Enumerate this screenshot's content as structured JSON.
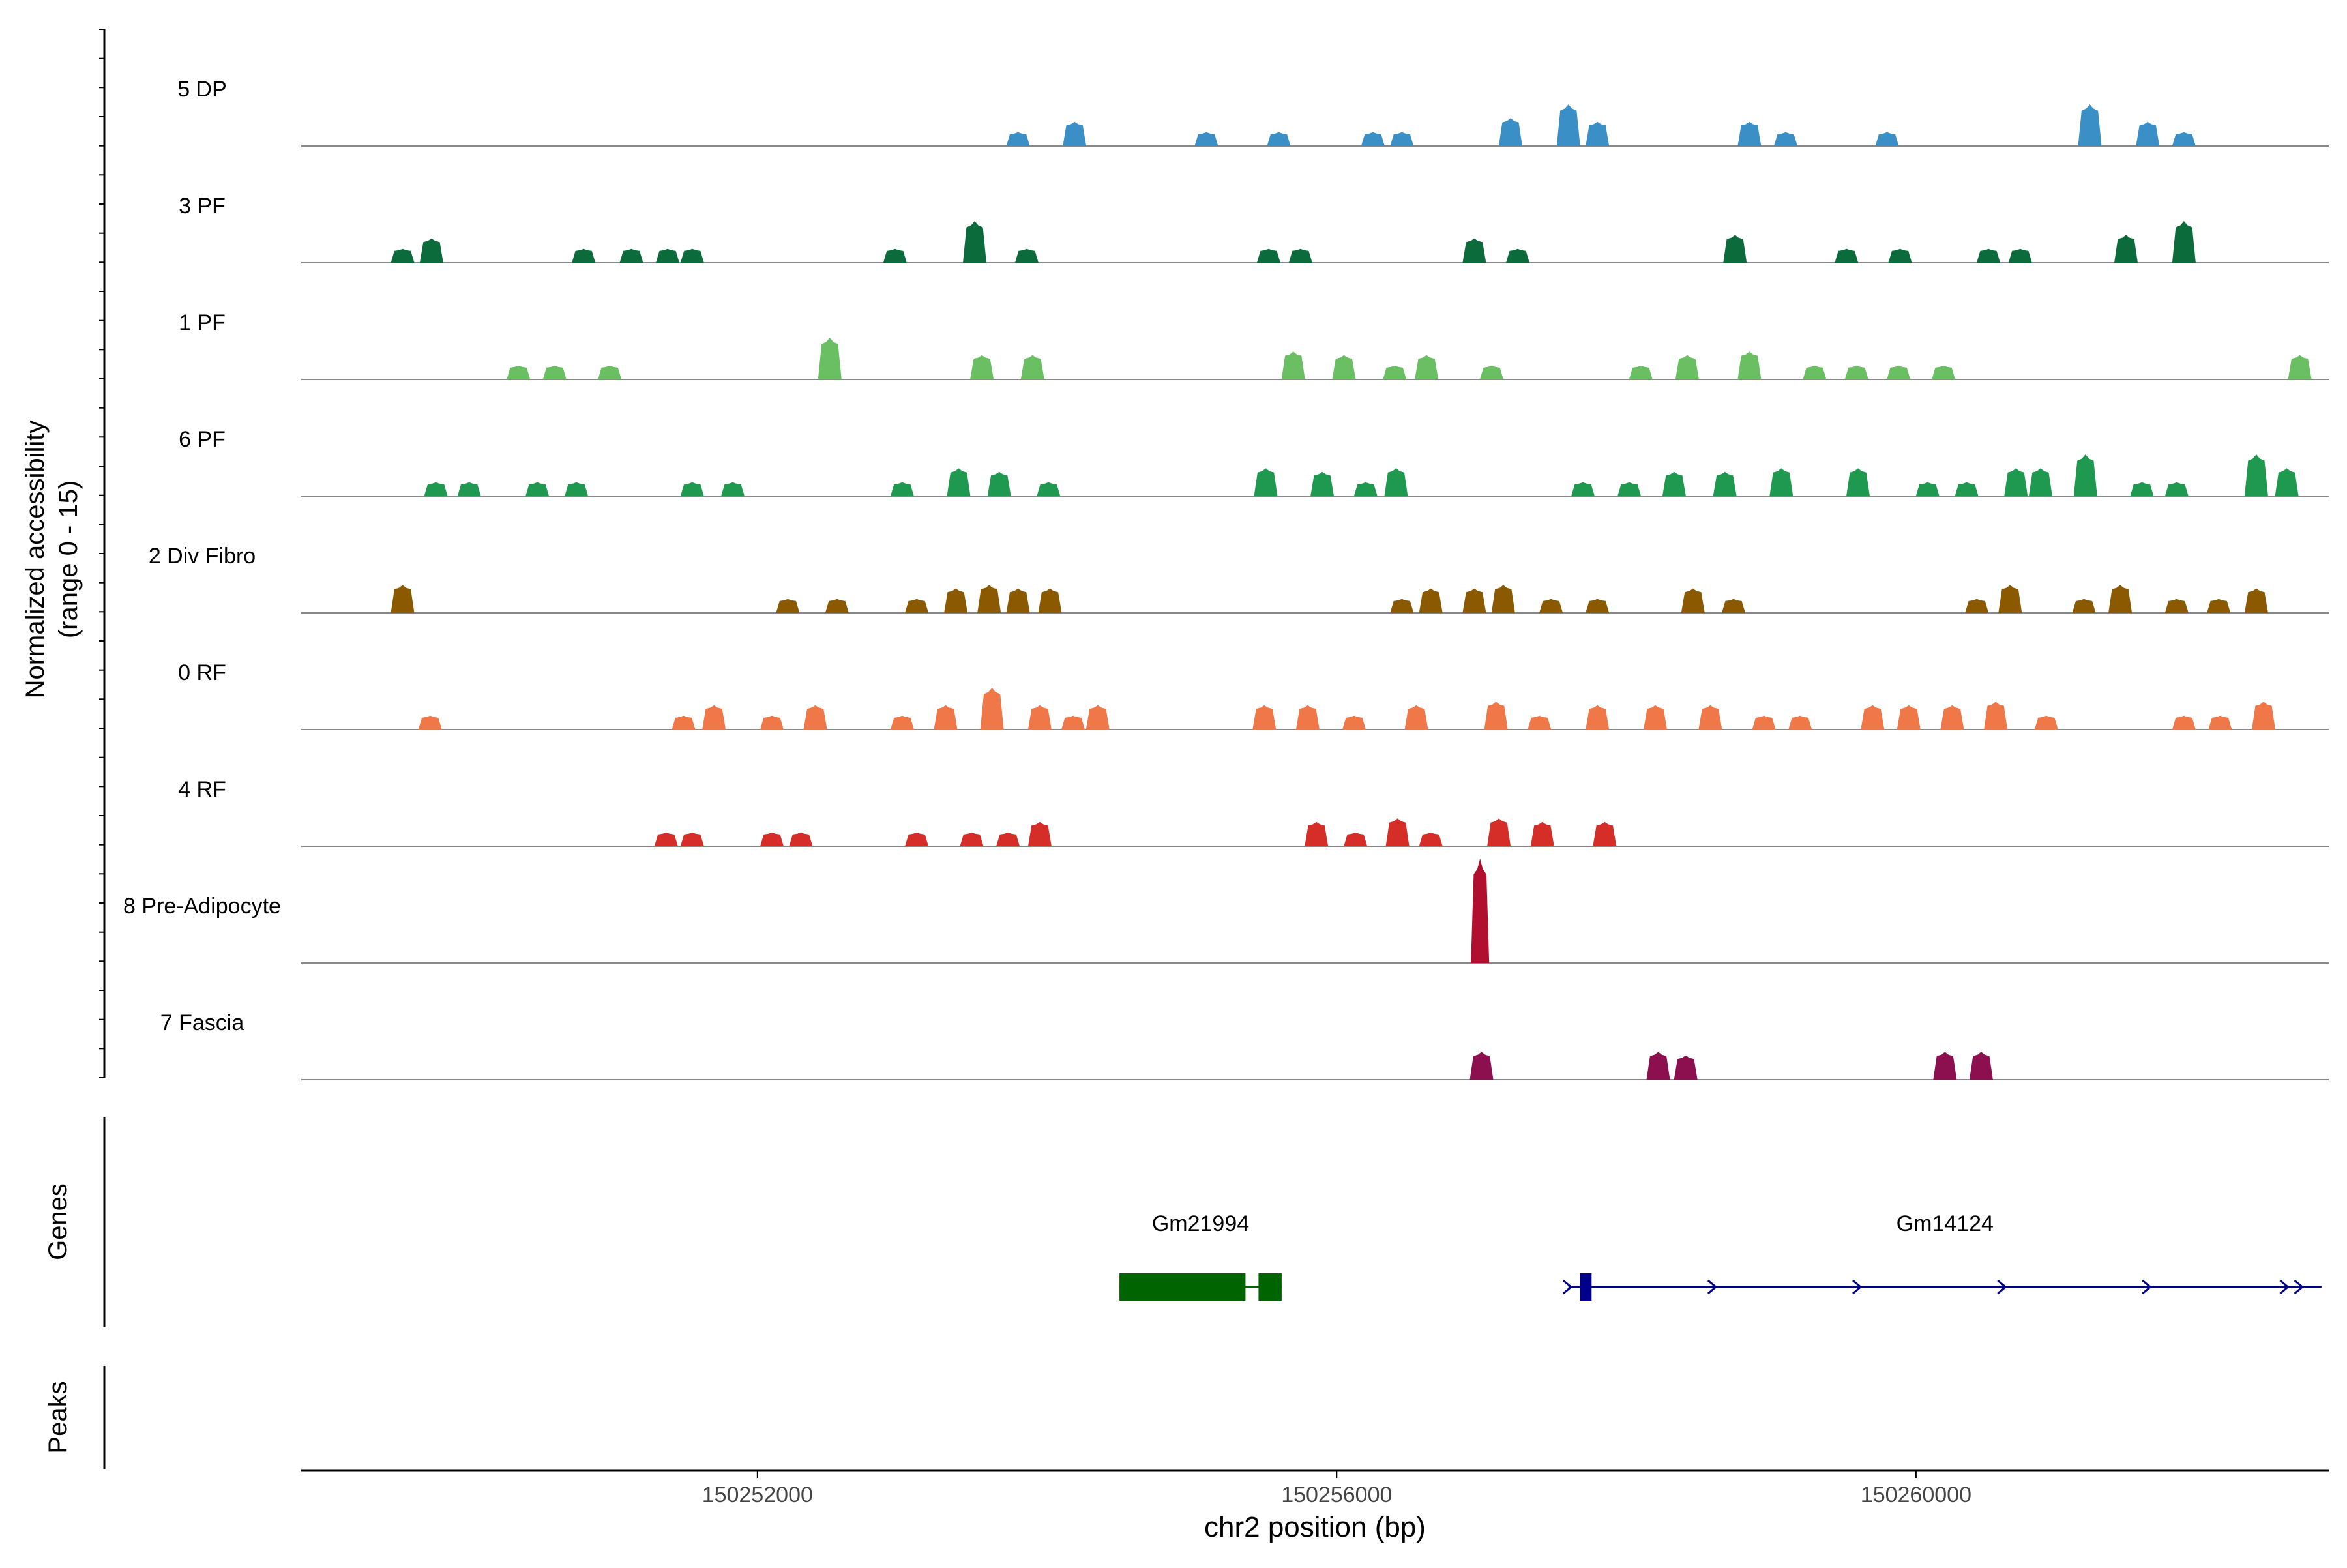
{
  "chart_data": {
    "type": "area",
    "ylabel": "Normalized accessibility",
    "ylabel_range": "(range 0 - 15)",
    "xlabel": "chr2 position (bp)",
    "xlim": [
      150248850,
      150262850
    ],
    "ylim": [
      0,
      15
    ],
    "x_ticks": [
      150252000,
      150256000,
      150260000
    ],
    "x_tick_labels": [
      "150252000",
      "150256000",
      "150260000"
    ],
    "grid": false,
    "legend": "none",
    "tracks": [
      {
        "name": "5 DP",
        "color": "#3a8fc7",
        "peaks": [
          [
            150253800,
            2
          ],
          [
            150254190,
            3.5
          ],
          [
            150255100,
            2
          ],
          [
            150255600,
            2
          ],
          [
            150256250,
            2
          ],
          [
            150256450,
            2
          ],
          [
            150257200,
            4
          ],
          [
            150257600,
            6
          ],
          [
            150257800,
            3.5
          ],
          [
            150258850,
            3.5
          ],
          [
            150259100,
            2
          ],
          [
            150259800,
            2
          ],
          [
            150261200,
            6
          ],
          [
            150261600,
            3.5
          ],
          [
            150261850,
            2
          ]
        ]
      },
      {
        "name": "3 PF",
        "color": "#0b6b3a",
        "peaks": [
          [
            150249550,
            2
          ],
          [
            150249750,
            3.5
          ],
          [
            150250800,
            2
          ],
          [
            150251130,
            2
          ],
          [
            150251380,
            2
          ],
          [
            150251550,
            2
          ],
          [
            150252950,
            2
          ],
          [
            150253500,
            6
          ],
          [
            150253860,
            2
          ],
          [
            150255530,
            2
          ],
          [
            150255750,
            2
          ],
          [
            150256950,
            3.5
          ],
          [
            150257250,
            2
          ],
          [
            150258750,
            4
          ],
          [
            150259520,
            2
          ],
          [
            150259890,
            2
          ],
          [
            150260500,
            2
          ],
          [
            150260720,
            2
          ],
          [
            150261450,
            4
          ],
          [
            150261850,
            6
          ]
        ]
      },
      {
        "name": "1 PF",
        "color": "#6abf62",
        "peaks": [
          [
            150250350,
            2
          ],
          [
            150250600,
            2
          ],
          [
            150250980,
            2
          ],
          [
            150252500,
            6
          ],
          [
            150253550,
            3.5
          ],
          [
            150253900,
            3.5
          ],
          [
            150255700,
            4
          ],
          [
            150256050,
            3.5
          ],
          [
            150256400,
            2
          ],
          [
            150256620,
            3.5
          ],
          [
            150257070,
            2
          ],
          [
            150258100,
            2
          ],
          [
            150258420,
            3.5
          ],
          [
            150258850,
            4
          ],
          [
            150259300,
            2
          ],
          [
            150259590,
            2
          ],
          [
            150259880,
            2
          ],
          [
            150260190,
            2
          ],
          [
            150262650,
            3.5
          ]
        ]
      },
      {
        "name": "6 PF",
        "color": "#1f9850",
        "peaks": [
          [
            150249780,
            2
          ],
          [
            150250010,
            2
          ],
          [
            150250480,
            2
          ],
          [
            150250750,
            2
          ],
          [
            150251550,
            2
          ],
          [
            150251830,
            2
          ],
          [
            150253000,
            2
          ],
          [
            150253390,
            4
          ],
          [
            150253670,
            3.5
          ],
          [
            150254010,
            2
          ],
          [
            150255510,
            4
          ],
          [
            150255900,
            3.5
          ],
          [
            150256200,
            2
          ],
          [
            150256410,
            4
          ],
          [
            150257700,
            2
          ],
          [
            150258020,
            2
          ],
          [
            150258330,
            3.5
          ],
          [
            150258680,
            3.5
          ],
          [
            150259070,
            4
          ],
          [
            150259600,
            4
          ],
          [
            150260080,
            2
          ],
          [
            150260350,
            2
          ],
          [
            150260690,
            4
          ],
          [
            150260860,
            4
          ],
          [
            150261170,
            6
          ],
          [
            150261560,
            2
          ],
          [
            150261800,
            2
          ],
          [
            150262350,
            6
          ],
          [
            150262560,
            4
          ]
        ]
      },
      {
        "name": "2 Div Fibro",
        "color": "#8b5a00",
        "peaks": [
          [
            150249550,
            4
          ],
          [
            150252210,
            2
          ],
          [
            150252550,
            2
          ],
          [
            150253100,
            2
          ],
          [
            150253370,
            3.5
          ],
          [
            150253600,
            4
          ],
          [
            150253800,
            3.5
          ],
          [
            150254020,
            3.5
          ],
          [
            150256450,
            2
          ],
          [
            150256650,
            3.5
          ],
          [
            150256950,
            3.5
          ],
          [
            150257150,
            4
          ],
          [
            150257480,
            2
          ],
          [
            150257800,
            2
          ],
          [
            150258460,
            3.5
          ],
          [
            150258740,
            2
          ],
          [
            150260420,
            2
          ],
          [
            150260650,
            4
          ],
          [
            150261160,
            2
          ],
          [
            150261410,
            4
          ],
          [
            150261800,
            2
          ],
          [
            150262090,
            2
          ],
          [
            150262350,
            3.5
          ]
        ]
      },
      {
        "name": "0 RF",
        "color": "#f07748",
        "peaks": [
          [
            150249740,
            2
          ],
          [
            150251490,
            2
          ],
          [
            150251700,
            3.5
          ],
          [
            150252100,
            2
          ],
          [
            150252400,
            3.5
          ],
          [
            150253000,
            2
          ],
          [
            150253300,
            3.5
          ],
          [
            150253620,
            6
          ],
          [
            150253950,
            3.5
          ],
          [
            150254180,
            2
          ],
          [
            150254350,
            3.5
          ],
          [
            150255500,
            3.5
          ],
          [
            150255800,
            3.5
          ],
          [
            150256120,
            2
          ],
          [
            150256550,
            3.5
          ],
          [
            150257100,
            4
          ],
          [
            150257400,
            2
          ],
          [
            150257800,
            3.5
          ],
          [
            150258200,
            3.5
          ],
          [
            150258580,
            3.5
          ],
          [
            150258950,
            2
          ],
          [
            150259200,
            2
          ],
          [
            150259700,
            3.5
          ],
          [
            150259950,
            3.5
          ],
          [
            150260250,
            3.5
          ],
          [
            150260550,
            4
          ],
          [
            150260900,
            2
          ],
          [
            150261850,
            2
          ],
          [
            150262100,
            2
          ],
          [
            150262400,
            4
          ]
        ]
      },
      {
        "name": "4 RF",
        "color": "#d52d27",
        "peaks": [
          [
            150251370,
            2
          ],
          [
            150251550,
            2
          ],
          [
            150252100,
            2
          ],
          [
            150252300,
            2
          ],
          [
            150253100,
            2
          ],
          [
            150253480,
            2
          ],
          [
            150253730,
            2
          ],
          [
            150253950,
            3.5
          ],
          [
            150255860,
            3.5
          ],
          [
            150256130,
            2
          ],
          [
            150256420,
            4
          ],
          [
            150256650,
            2
          ],
          [
            150257120,
            4
          ],
          [
            150257420,
            3.5
          ],
          [
            150257850,
            3.5
          ]
        ]
      },
      {
        "name": "8 Pre-Adipocyte",
        "color": "#b0102e",
        "peaks": [
          [
            150256990,
            15
          ]
        ]
      },
      {
        "name": "7 Fascia",
        "color": "#8c0f4f",
        "peaks": [
          [
            150257000,
            4
          ],
          [
            150258220,
            4
          ],
          [
            150258410,
            3.5
          ],
          [
            150260200,
            4
          ],
          [
            150260450,
            4
          ]
        ]
      }
    ],
    "genes_label": "Genes",
    "peaks_label": "Peaks",
    "genes": [
      {
        "name": "Gm21994",
        "color": "#006400",
        "strand": "-",
        "start": 150254500,
        "end": 150255620,
        "exons": [
          [
            150254500,
            150255370
          ],
          [
            150255460,
            150255620
          ]
        ],
        "arrows": []
      },
      {
        "name": "Gm14124",
        "color": "#00008b",
        "strand": "+",
        "start": 150257600,
        "end": 150262800,
        "exons": [
          [
            150257680,
            150257760
          ]
        ],
        "arrows": [
          150257600,
          150258600,
          150259600,
          150260600,
          150261600,
          150262550,
          150262650
        ]
      }
    ]
  }
}
